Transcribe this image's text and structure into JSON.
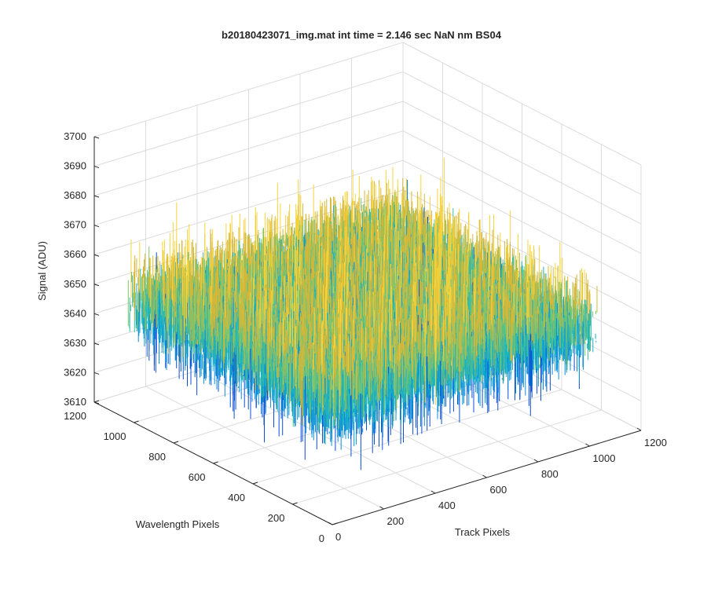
{
  "chart_data": {
    "type": "surface3d",
    "title": "b20180423071_img.mat int time = 2.146 sec  NaN nm BS04",
    "xlabel": "Track Pixels",
    "ylabel": "Wavelength Pixels",
    "zlabel": "Signal (ADU)",
    "xlim": [
      0,
      1200
    ],
    "ylim": [
      0,
      1200
    ],
    "zlim": [
      3610,
      3700
    ],
    "xticks": [
      "0",
      "200",
      "400",
      "600",
      "800",
      "1000",
      "1200"
    ],
    "yticks": [
      "0",
      "200",
      "400",
      "600",
      "800",
      "1000",
      "1200"
    ],
    "zticks": [
      "3610",
      "3620",
      "3630",
      "3640",
      "3650",
      "3660",
      "3670",
      "3680",
      "3690",
      "3700"
    ],
    "data_extent": {
      "x": [
        0,
        1024
      ],
      "y": [
        0,
        1024
      ]
    },
    "signal_mean": 3650,
    "signal_spread": 8,
    "colormap": [
      "#0c4fd6",
      "#0a8ed8",
      "#15b0c8",
      "#3cbf9b",
      "#7ec46c",
      "#d6b838",
      "#f7d43b"
    ],
    "grid": true
  }
}
